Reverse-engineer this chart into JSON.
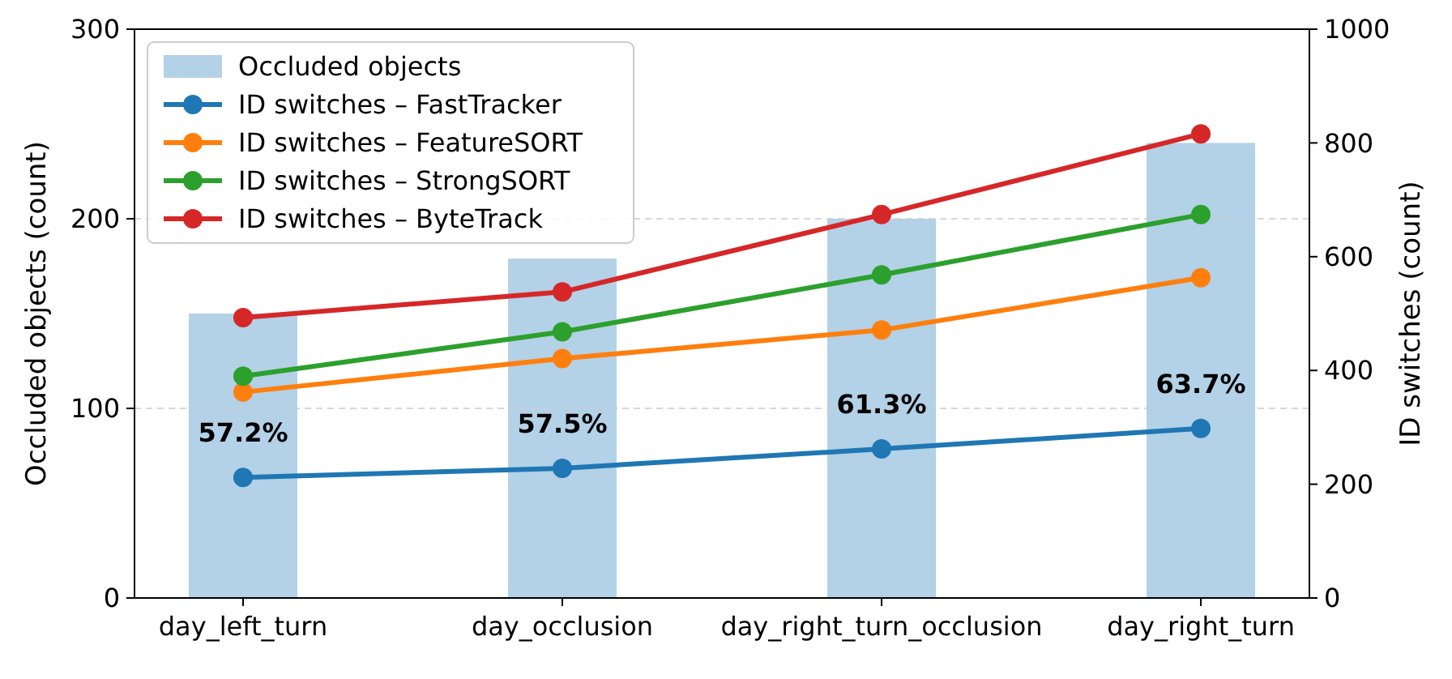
{
  "chart_data": {
    "type": "bar",
    "categories": [
      "day_left_turn",
      "day_occlusion",
      "day_right_turn_occlusion",
      "day_right_turn"
    ],
    "ylabel": "Occluded objects (count)",
    "y2label": "ID switches (count)",
    "ylim": [
      0,
      300
    ],
    "yticks": [
      0,
      100,
      200,
      300
    ],
    "y2lim": [
      0,
      1000
    ],
    "y2ticks": [
      0,
      200,
      400,
      600,
      800,
      1000
    ],
    "grid": "y",
    "legend": "top left",
    "marker": "circle",
    "series": [
      {
        "name": "Occluded objects",
        "color": "#b3d1e7",
        "values": [
          150,
          179,
          200,
          240
        ]
      },
      {
        "name": "ID switches – FastTracker",
        "type": "line",
        "axis": "y2",
        "color": "#1f77b4",
        "values": [
          212,
          228,
          262,
          298
        ]
      },
      {
        "name": "ID switches – FeatureSORT",
        "type": "line",
        "axis": "y2",
        "color": "#ff7f0e",
        "values": [
          362,
          421,
          471,
          563
        ]
      },
      {
        "name": "ID switches – StrongSORT",
        "type": "line",
        "axis": "y2",
        "color": "#2ca02c",
        "values": [
          390,
          468,
          568,
          674
        ]
      },
      {
        "name": "ID switches – ByteTrack",
        "type": "line",
        "axis": "y2",
        "color": "#d62728",
        "values": [
          493,
          538,
          674,
          816
        ]
      }
    ],
    "annotations": [
      {
        "text": "57.2%",
        "x": "day_left_turn",
        "y": 63.6
      },
      {
        "text": "57.5%",
        "x": "day_occlusion",
        "y": 68.4
      },
      {
        "text": "61.3%",
        "x": "day_right_turn_occlusion",
        "y": 78.6
      },
      {
        "text": "63.7%",
        "x": "day_right_turn",
        "y": 89.4
      }
    ]
  }
}
